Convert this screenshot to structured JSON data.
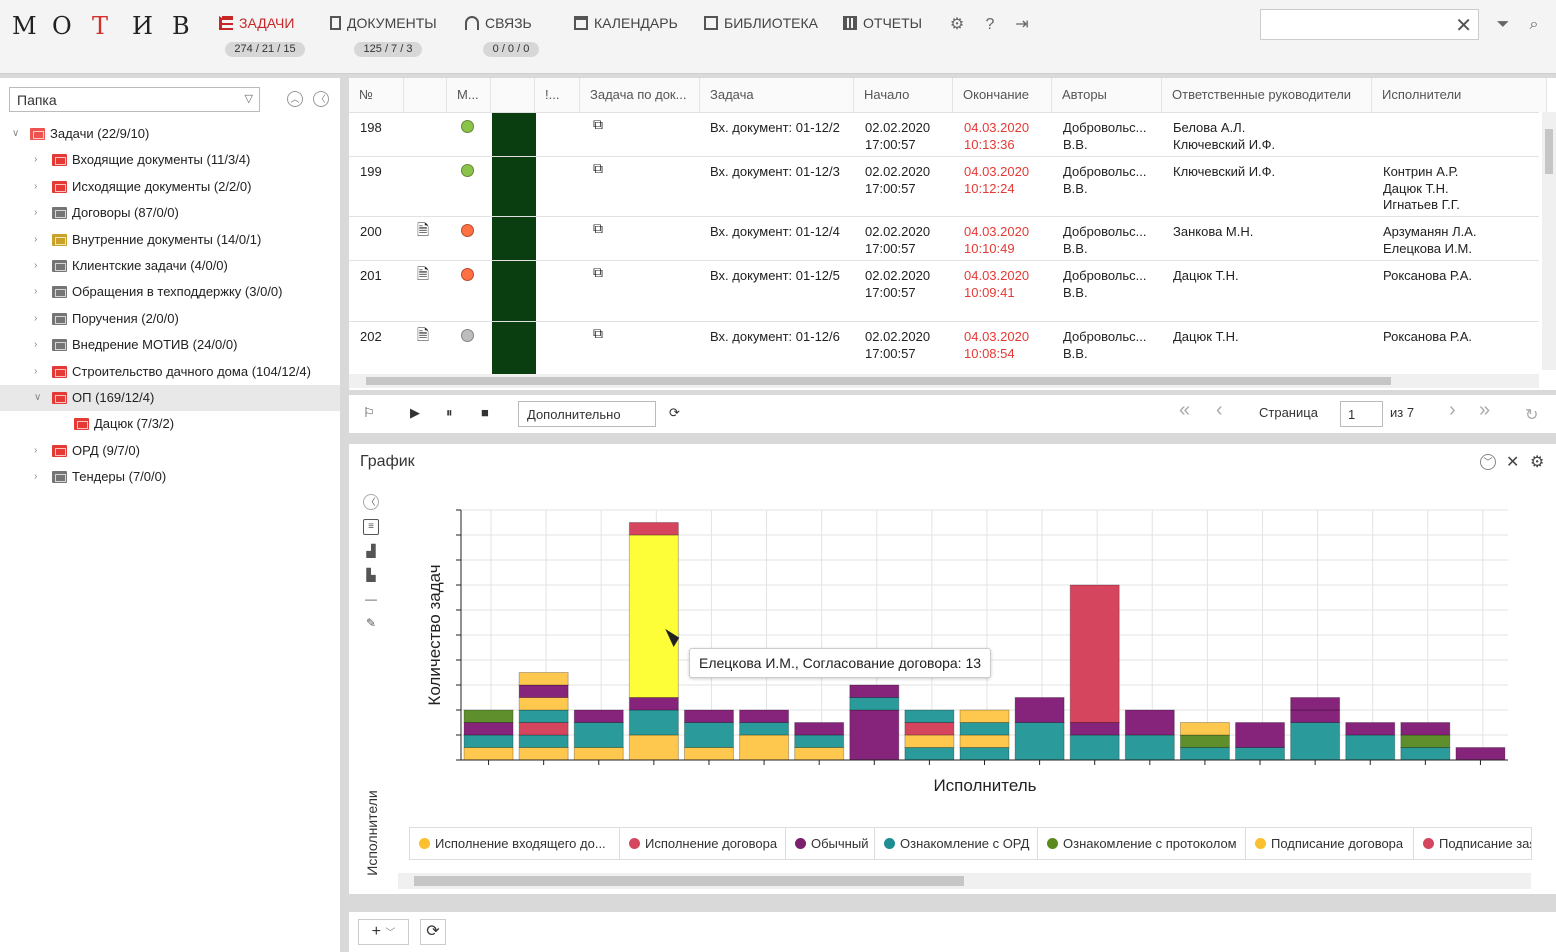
{
  "logo": [
    "М",
    "О",
    "Т",
    "И",
    "В"
  ],
  "nav": [
    {
      "label": "ЗАДАЧИ",
      "badge": "274 / 21 / 15",
      "active": true
    },
    {
      "label": "ДОКУМЕНТЫ",
      "badge": "125 / 7 / 3"
    },
    {
      "label": "СВЯЗЬ",
      "badge": "0 / 0 / 0"
    },
    {
      "label": "КАЛЕНДАРЬ"
    },
    {
      "label": "БИБЛИОТЕКА"
    },
    {
      "label": "ОТЧЕТЫ"
    }
  ],
  "left": {
    "folder_select": "Папка",
    "tree": [
      {
        "label": "Задачи (22/9/10)",
        "level": 0,
        "color": "redo",
        "open": true
      },
      {
        "label": "Входящие документы (11/3/4)",
        "level": 1,
        "color": "red"
      },
      {
        "label": "Исходящие документы (2/2/0)",
        "level": 1,
        "color": "red"
      },
      {
        "label": "Договоры (87/0/0)",
        "level": 1,
        "color": "gray"
      },
      {
        "label": "Внутренние документы (14/0/1)",
        "level": 1,
        "color": "yel"
      },
      {
        "label": "Клиентские задачи (4/0/0)",
        "level": 1,
        "color": "gray"
      },
      {
        "label": "Обращения в техподдержку (3/0/0)",
        "level": 1,
        "color": "gray"
      },
      {
        "label": "Поручения (2/0/0)",
        "level": 1,
        "color": "gray"
      },
      {
        "label": "Внедрение МОТИВ (24/0/0)",
        "level": 1,
        "color": "gray"
      },
      {
        "label": "Строительство дачного дома (104/12/4)",
        "level": 1,
        "color": "red"
      },
      {
        "label": "ОП (169/12/4)",
        "level": 1,
        "color": "red",
        "open": true,
        "selected": true
      },
      {
        "label": "Дацюк (7/3/2)",
        "level": 2,
        "color": "red"
      },
      {
        "label": "ОРД (9/7/0)",
        "level": 1,
        "color": "red"
      },
      {
        "label": "Тендеры (7/0/0)",
        "level": 1,
        "color": "gray"
      }
    ]
  },
  "grid": {
    "headers": [
      "№",
      "",
      "М...",
      "",
      "!...",
      "Задача по док...",
      "Задача",
      "Начало",
      "Окончание",
      "Авторы",
      "Ответственные руководители",
      "Исполнители"
    ],
    "rows": [
      {
        "n": "198",
        "dot": "#8bc34a",
        "doc": false,
        "task": "Вх. документ: 01-12/2",
        "start1": "02.02.2020",
        "start2": "17:00:57",
        "end1": "04.03.2020",
        "end2": "10:13:36",
        "author1": "Добровольс...",
        "author2": "В.В.",
        "resp": [
          "Белова А.Л.",
          "Ключевский И.Ф."
        ],
        "exec": []
      },
      {
        "n": "199",
        "dot": "#8bc34a",
        "doc": false,
        "task": "Вх. документ: 01-12/3",
        "start1": "02.02.2020",
        "start2": "17:00:57",
        "end1": "04.03.2020",
        "end2": "10:12:24",
        "author1": "Добровольс...",
        "author2": "В.В.",
        "resp": [
          "Ключевский И.Ф."
        ],
        "exec": [
          "Контрин А.Р.",
          "Дацюк Т.Н.",
          "Игнатьев Г.Г."
        ]
      },
      {
        "n": "200",
        "dot": "#ff7043",
        "doc": true,
        "task": "Вх. документ: 01-12/4",
        "start1": "02.02.2020",
        "start2": "17:00:57",
        "end1": "04.03.2020",
        "end2": "10:10:49",
        "author1": "Добровольс...",
        "author2": "В.В.",
        "resp": [
          "Занкова М.Н."
        ],
        "exec": [
          "Арзуманян Л.А.",
          "Елецкова И.М."
        ]
      },
      {
        "n": "201",
        "dot": "#ff7043",
        "doc": true,
        "task": "Вх. документ: 01-12/5",
        "start1": "02.02.2020",
        "start2": "17:00:57",
        "end1": "04.03.2020",
        "end2": "10:09:41",
        "author1": "Добровольс...",
        "author2": "В.В.",
        "resp": [
          "Дацюк Т.Н."
        ],
        "exec": [
          "Роксанова Р.А."
        ]
      },
      {
        "n": "202",
        "dot": "#bdbdbd",
        "doc": true,
        "task": "Вх. документ: 01-12/6",
        "start1": "02.02.2020",
        "start2": "17:00:57",
        "end1": "04.03.2020",
        "end2": "10:08:54",
        "author1": "Добровольс...",
        "author2": "В.В.",
        "resp": [
          "Дацюк Т.Н."
        ],
        "exec": [
          "Роксанова Р.А."
        ]
      }
    ]
  },
  "toolbar": {
    "dropdown": "Дополнительно",
    "page_label": "Страница",
    "page_value": "1",
    "page_of": "из 7"
  },
  "graph": {
    "title": "График",
    "tooltip": "Елецкова И.М., Согласование договора: 13",
    "side_label": "Исполнители",
    "legend": [
      {
        "label": "Исполнение входящего до...",
        "color": "#fbc02d"
      },
      {
        "label": "Исполнение договора",
        "color": "#d6455e"
      },
      {
        "label": "Обычный",
        "color": "#7b1f6e"
      },
      {
        "label": "Ознакомление с ОРД",
        "color": "#1f8d94"
      },
      {
        "label": "Ознакомление с протоколом",
        "color": "#5a8a1c"
      },
      {
        "label": "Подписание договора",
        "color": "#fbc02d"
      },
      {
        "label": "Подписание зая...",
        "color": "#d6455e"
      }
    ]
  },
  "chart_data": {
    "type": "bar",
    "stacked": true,
    "xlabel": "Исполнитель",
    "ylabel": "Количество задач",
    "ylim": [
      0,
      20
    ],
    "grid": true,
    "series_colors": {
      "yellow": "#fdc84d",
      "red": "#d6455e",
      "purple": "#86237a",
      "teal": "#2b9a9a",
      "green": "#5f8f2c",
      "brightyellow": "#fdfd38"
    },
    "stacks": [
      [
        [
          "yellow",
          1
        ],
        [
          "teal",
          1
        ],
        [
          "purple",
          1
        ],
        [
          "green",
          1
        ]
      ],
      [
        [
          "yellow",
          1
        ],
        [
          "teal",
          1
        ],
        [
          "red",
          1
        ],
        [
          "teal",
          1
        ],
        [
          "yellow",
          1
        ],
        [
          "purple",
          1
        ],
        [
          "yellow",
          1
        ]
      ],
      [
        [
          "yellow",
          1
        ],
        [
          "teal",
          2
        ],
        [
          "purple",
          1
        ]
      ],
      [
        [
          "yellow",
          2
        ],
        [
          "teal",
          2
        ],
        [
          "purple",
          1
        ],
        [
          "brightyellow",
          13
        ],
        [
          "red",
          1
        ]
      ],
      [
        [
          "yellow",
          1
        ],
        [
          "teal",
          2
        ],
        [
          "purple",
          1
        ]
      ],
      [
        [
          "yellow",
          2
        ],
        [
          "teal",
          1
        ],
        [
          "purple",
          1
        ]
      ],
      [
        [
          "yellow",
          1
        ],
        [
          "teal",
          1
        ],
        [
          "purple",
          1
        ]
      ],
      [
        [
          "purple",
          4
        ],
        [
          "teal",
          1
        ],
        [
          "purple",
          1
        ]
      ],
      [
        [
          "teal",
          1
        ],
        [
          "yellow",
          1
        ],
        [
          "red",
          1
        ],
        [
          "teal",
          1
        ]
      ],
      [
        [
          "teal",
          1
        ],
        [
          "yellow",
          1
        ],
        [
          "teal",
          1
        ],
        [
          "yellow",
          1
        ]
      ],
      [
        [
          "teal",
          3
        ],
        [
          "purple",
          2
        ]
      ],
      [
        [
          "teal",
          2
        ],
        [
          "purple",
          1
        ],
        [
          "red",
          11
        ]
      ],
      [
        [
          "teal",
          2
        ],
        [
          "purple",
          2
        ]
      ],
      [
        [
          "teal",
          1
        ],
        [
          "green",
          1
        ],
        [
          "yellow",
          1
        ]
      ],
      [
        [
          "teal",
          1
        ],
        [
          "purple",
          2
        ]
      ],
      [
        [
          "teal",
          3
        ],
        [
          "purple",
          1
        ],
        [
          "purple",
          1
        ]
      ],
      [
        [
          "teal",
          2
        ],
        [
          "purple",
          1
        ]
      ],
      [
        [
          "teal",
          1
        ],
        [
          "green",
          1
        ],
        [
          "purple",
          1
        ]
      ],
      [
        [
          "purple",
          1
        ]
      ]
    ]
  }
}
